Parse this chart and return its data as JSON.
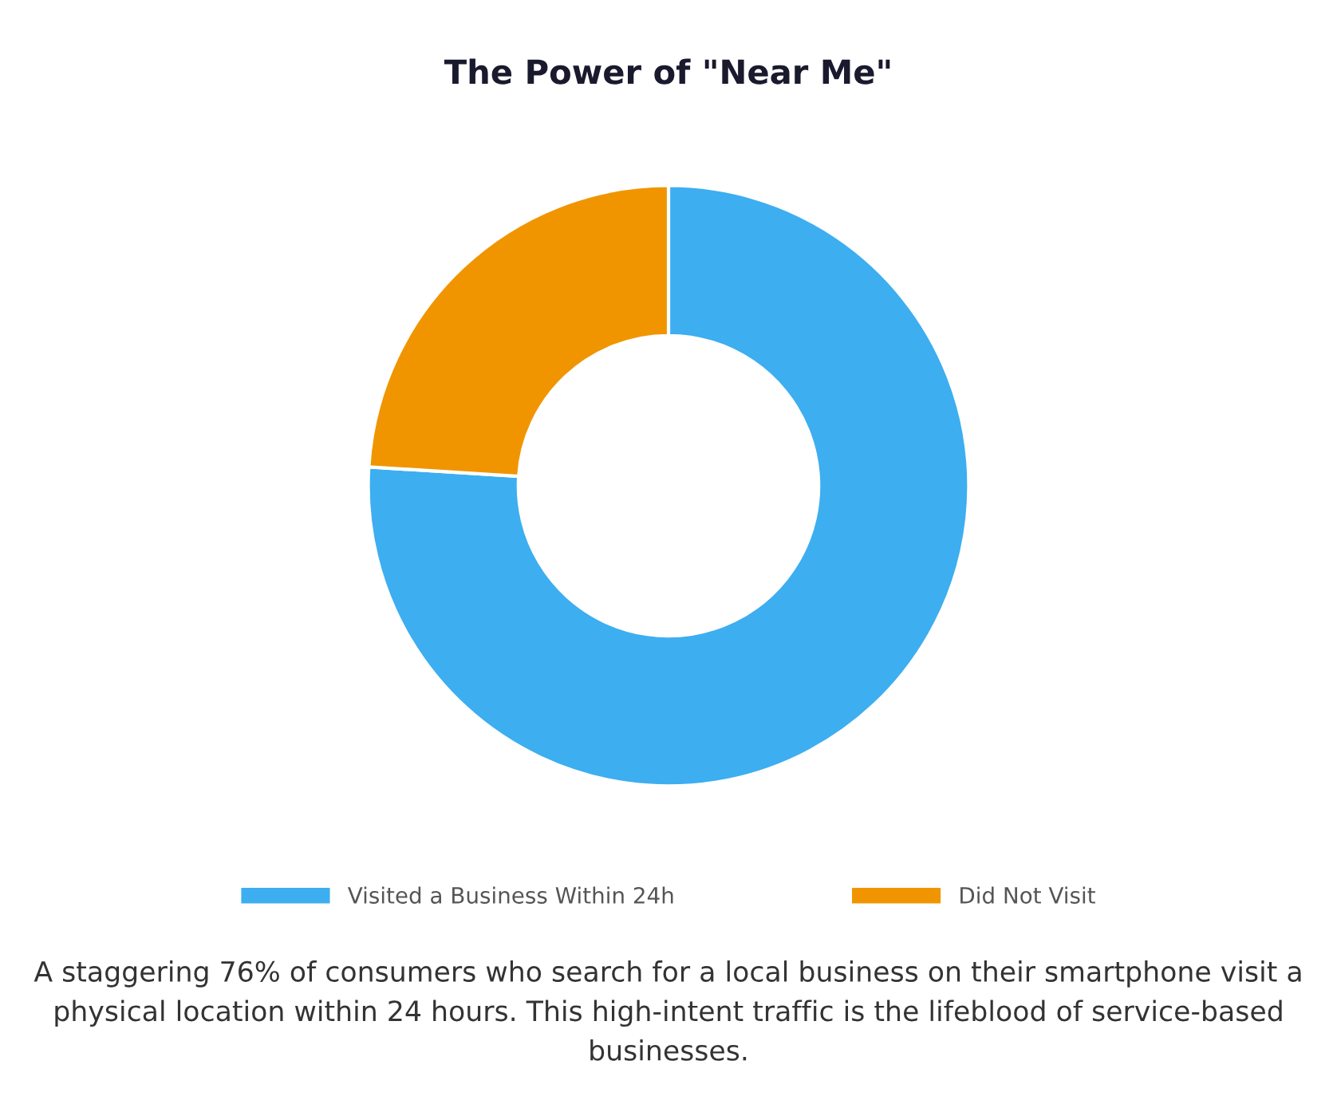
{
  "chart_data": {
    "type": "donut",
    "title": "The Power of \"Near Me\"",
    "categories": [
      "Visited a Business Within 24h",
      "Did Not Visit"
    ],
    "values": [
      76,
      24
    ],
    "colors": [
      "#3daef0",
      "#f09500"
    ],
    "legend": "bottom",
    "annotations": [
      "A staggering 76% of consumers who search for a local business on their smartphone visit a physical location within 24 hours. This high-intent traffic is the lifeblood of service-based businesses."
    ]
  }
}
